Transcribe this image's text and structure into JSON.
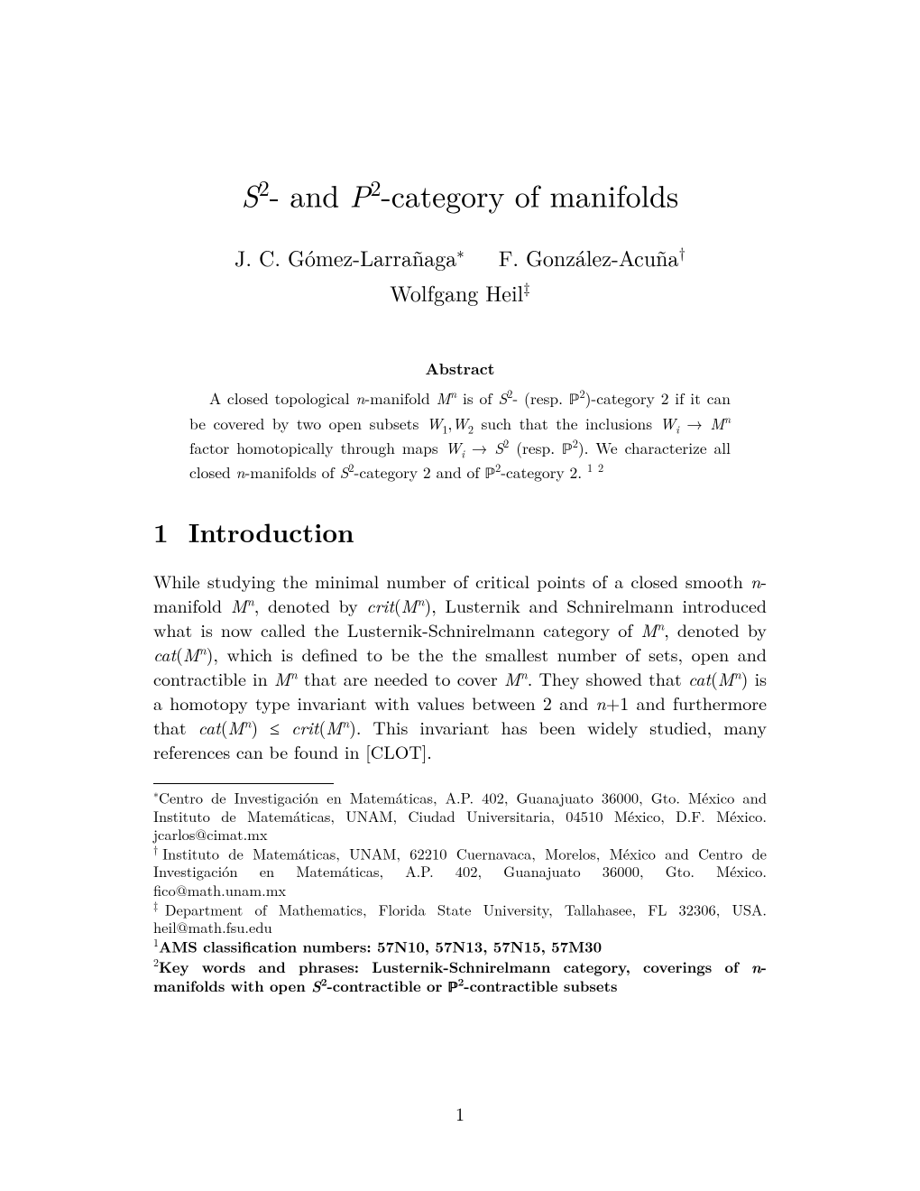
{
  "title": {
    "prefix_var": "S",
    "prefix_exp": "2",
    "mid": "- and ",
    "mid_var": "P",
    "mid_exp": "2",
    "suffix": "-category of manifolds"
  },
  "authors": {
    "a1": "J. C. Gómez-Larrañaga",
    "a1_mark": "∗",
    "a2": "F. González-Acuña",
    "a2_mark": "†",
    "a3": "Wolfgang Heil",
    "a3_mark": "‡"
  },
  "abstract": {
    "heading": "Abstract",
    "l1a": "A closed topological ",
    "l1b": "n",
    "l1c": "-manifold ",
    "l1d": "M",
    "l1e": "n",
    "l1f": " is of ",
    "l1g": "S",
    "l1h": "2",
    "l1i": "- (resp. ",
    "l1j": "ℙ",
    "l1k": "2",
    "l1l": ")-category 2 if it can be covered by two open subsets ",
    "l1m": "W",
    "l1n": "1",
    "l1o": ",",
    "l1p": "W",
    "l1q": "2",
    "l1r": " such that the inclusions ",
    "l2a": "W",
    "l2a2": "i",
    "l2b": " → ",
    "l2c": "M",
    "l2d": "n",
    "l2e": " factor homotopically through maps ",
    "l2f": "W",
    "l2f2": "i",
    "l2g": " → ",
    "l2h": "S",
    "l2i": "2",
    "l2j": " (resp. ",
    "l2k": "ℙ",
    "l2l": "2",
    "l2m": "). We characterize all closed ",
    "l2n": "n",
    "l2o": "-manifolds of ",
    "l2p": "S",
    "l2q": "2",
    "l2r": "-category 2 and of ",
    "l2s": "ℙ",
    "l2t": "2",
    "l2u": "-category 2. ",
    "fn1": "1",
    "fn2": "2"
  },
  "section1": {
    "num": "1",
    "title": "Introduction"
  },
  "body": {
    "p1a": "While studying the minimal number of critical points of a closed smooth ",
    "p1b": "n",
    "p1c": "-manifold ",
    "p1d": "M",
    "p1e": "n",
    "p1f": ", denoted by ",
    "p1g": "crit",
    "p1h": "(",
    "p1i": "M",
    "p1j": "n",
    "p1k": "), Lusternik and Schnirelmann introduced what is now called the Lusternik-Schnirelmann category of ",
    "p1l": "M",
    "p1m": "n",
    "p1n": ", denoted by ",
    "p1o": "cat",
    "p1p": "(",
    "p1q": "M",
    "p1r": "n",
    "p1s": "), which is defined to be the the smallest number of sets, open and contractible in ",
    "p1t": "M",
    "p1u": "n",
    "p1v": " that are needed to cover ",
    "p1w": "M",
    "p1x": "n",
    "p1y": ". They showed that ",
    "p1z": "cat",
    "p1aa": "(",
    "p1ab": "M",
    "p1ac": "n",
    "p1ad": ") is a homotopy type invariant with values between 2 and ",
    "p1ae": "n",
    "p1af": "+1 and furthermore that ",
    "p1ag": "cat",
    "p1ah": "(",
    "p1ai": "M",
    "p1aj": "n",
    "p1ak": ") ≤ ",
    "p1al": "crit",
    "p1am": "(",
    "p1an": "M",
    "p1ao": "n",
    "p1ap": ").  This invariant has been widely studied, many references can be found in [CLOT]."
  },
  "footnotes": {
    "f1_mark": "∗",
    "f1_text": "Centro de Investigación en Matemáticas, A.P. 402, Guanajuato 36000, Gto. México and Instituto de Matemáticas, UNAM, Ciudad Universitaria, 04510 México, D.F. México. jcarlos@cimat.mx",
    "f2_mark": "†",
    "f2_text": "Instituto de Matemáticas, UNAM, 62210 Cuernavaca, Morelos, México and Centro de Investigación en Matemáticas, A.P. 402, Guanajuato 36000, Gto. México. fico@math.unam.mx",
    "f3_mark": "‡",
    "f3_text": "Department of Mathematics, Florida State University, Tallahasee, FL 32306, USA. heil@math.fsu.edu",
    "f4_mark": "1",
    "f4_text": "AMS classification numbers: 57N10, 57N13, 57N15, 57M30",
    "f5_mark": "2",
    "f5a": "Key words and phrases: Lusternik-Schnirelmann category, coverings of ",
    "f5b": "n",
    "f5c": "-manifolds with open ",
    "f5d": "S",
    "f5e": "2",
    "f5f": "-contractible or ",
    "f5g": "ℙ",
    "f5h": "2",
    "f5i": "-contractible subsets"
  },
  "page_number": "1",
  "colors": {
    "text": "#000000",
    "background": "#ffffff"
  },
  "typography": {
    "title_fontsize": 34,
    "author_fontsize": 24,
    "abstract_fontsize": 17.5,
    "section_fontsize": 29,
    "body_fontsize": 20,
    "footnote_fontsize": 16.5
  }
}
